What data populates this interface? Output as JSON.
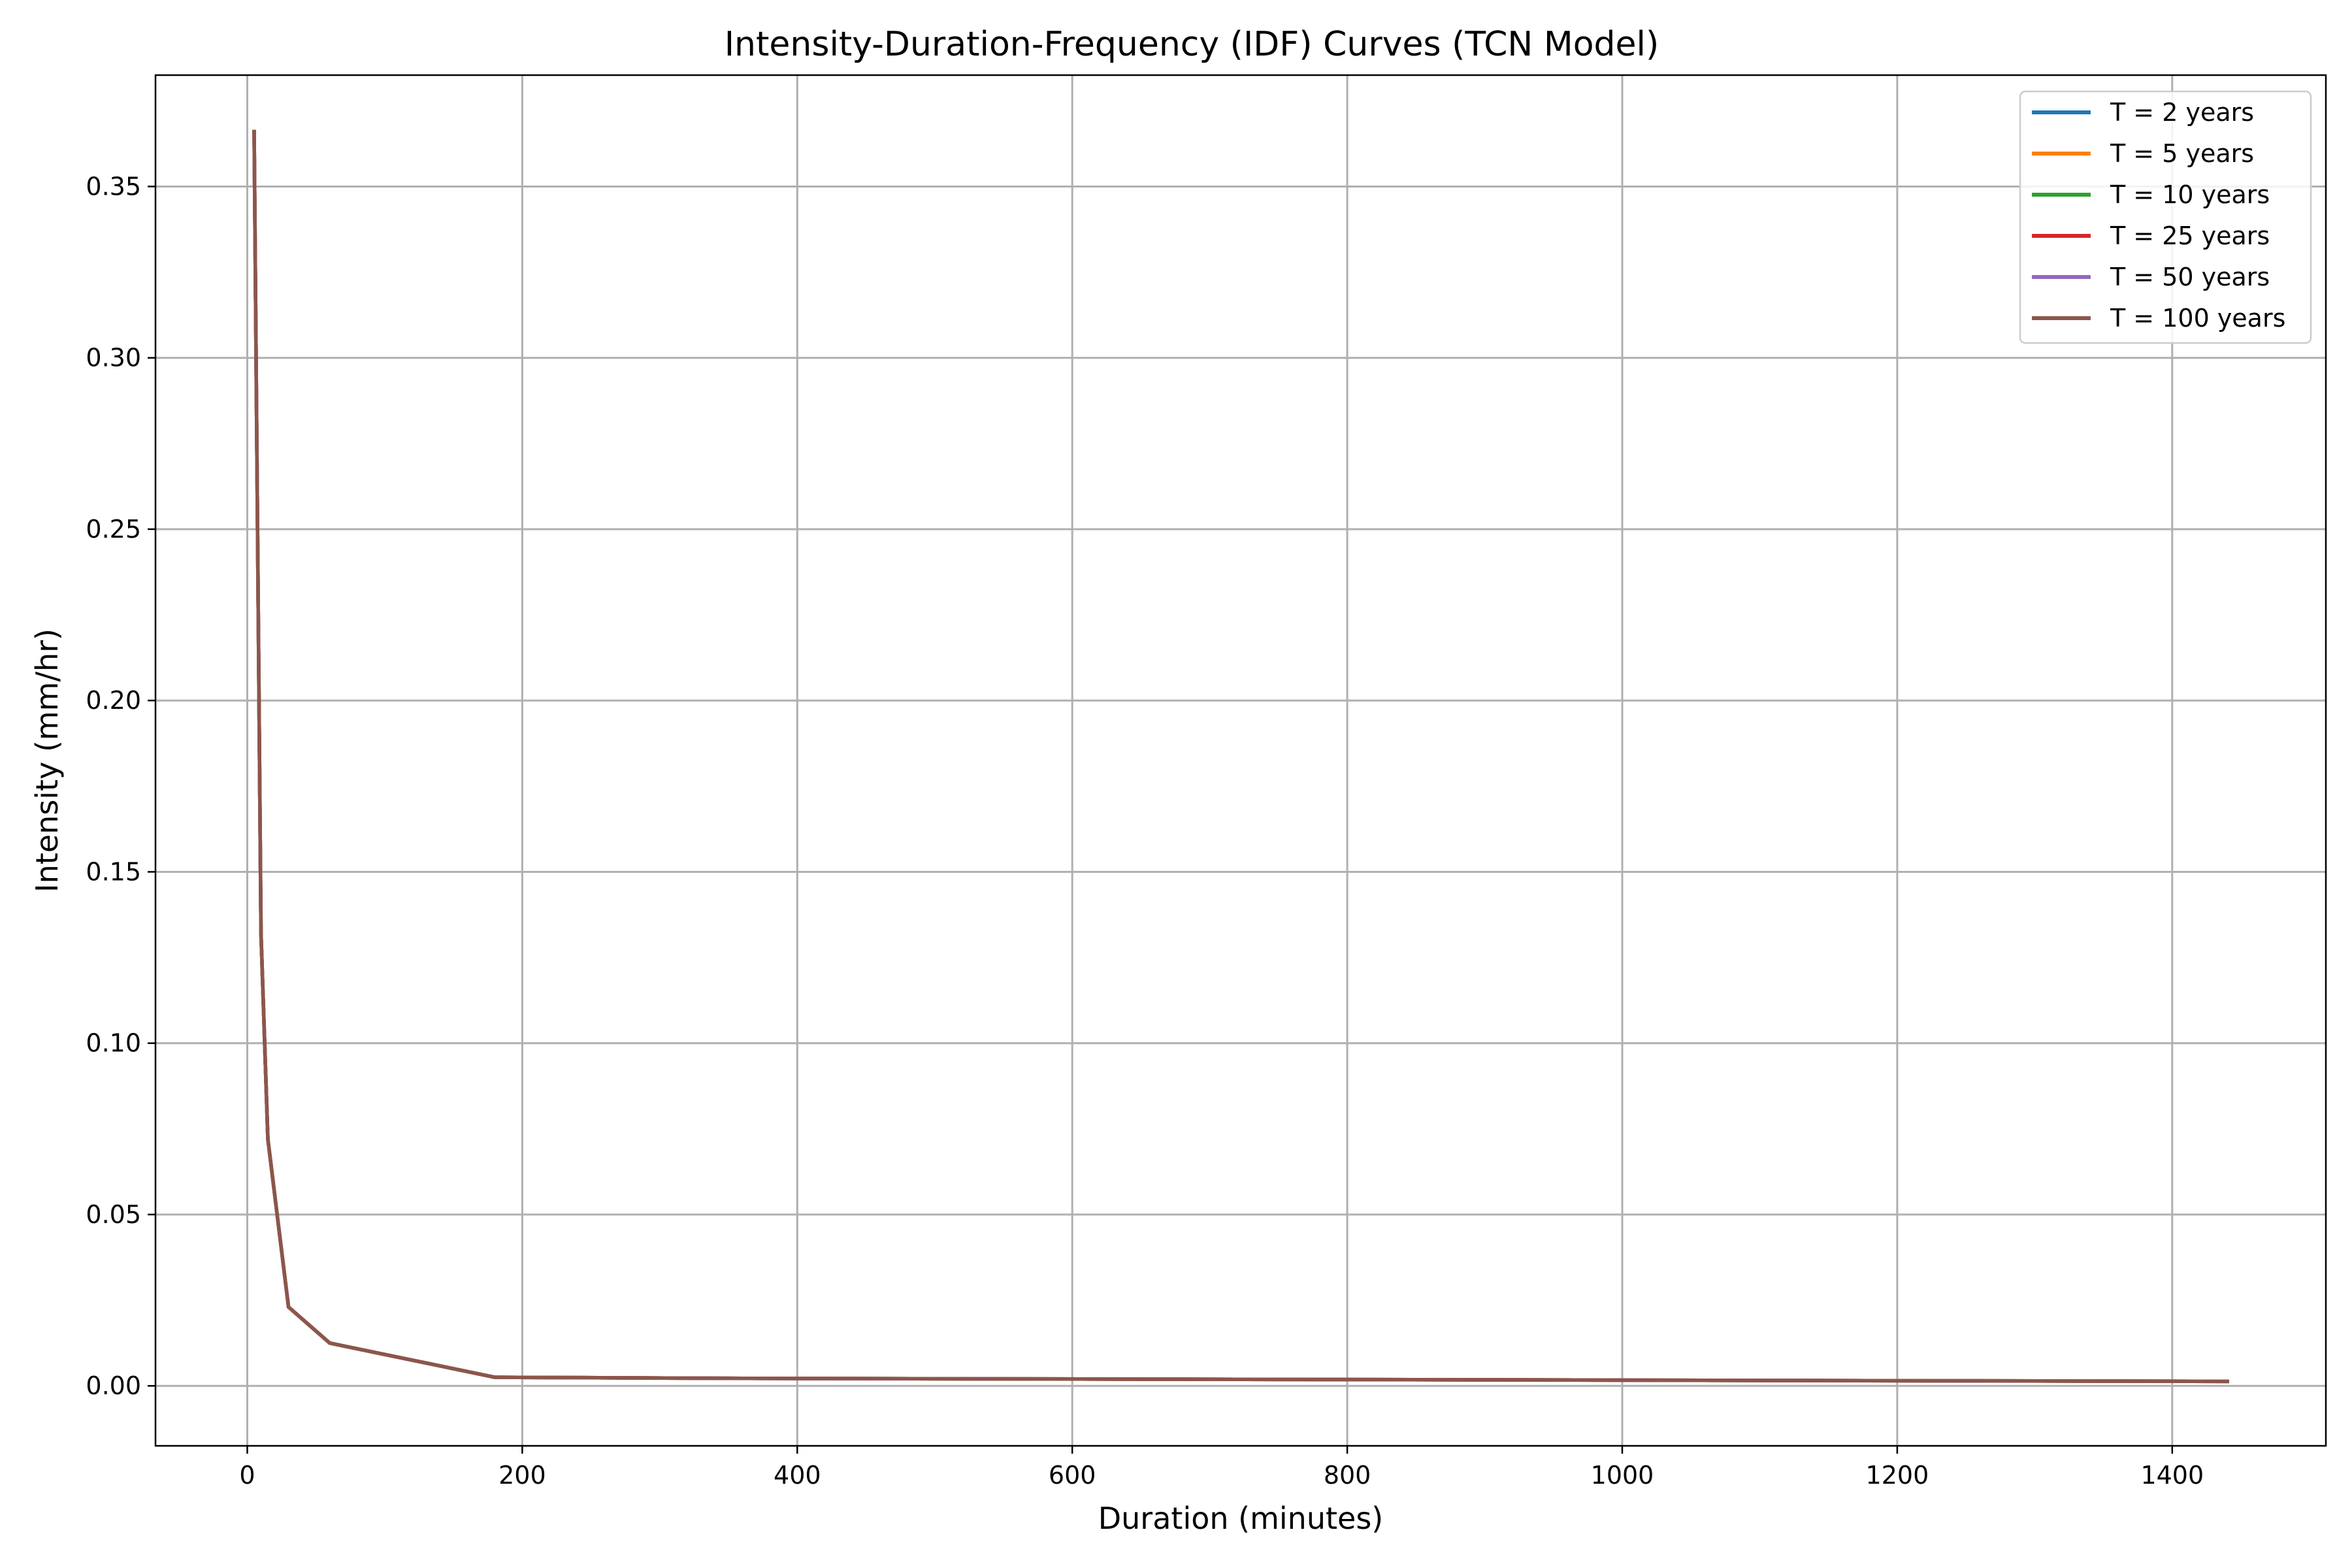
{
  "chart_data": {
    "type": "line",
    "title": "Intensity-Duration-Frequency (IDF) Curves (TCN Model)",
    "xlabel": "Duration (minutes)",
    "ylabel": "Intensity (mm/hr)",
    "xlim": [
      -66.75,
      1511.75
    ],
    "ylim": [
      -0.0175,
      0.3825
    ],
    "xticks": [
      0,
      200,
      400,
      600,
      800,
      1000,
      1200,
      1400
    ],
    "xtick_labels": [
      "0",
      "200",
      "400",
      "600",
      "800",
      "1000",
      "1200",
      "1400"
    ],
    "yticks": [
      0.0,
      0.05,
      0.1,
      0.15,
      0.2,
      0.25,
      0.3,
      0.35
    ],
    "ytick_labels": [
      "0.00",
      "0.05",
      "0.10",
      "0.15",
      "0.20",
      "0.25",
      "0.30",
      "0.35"
    ],
    "grid": true,
    "legend_position": "top-right",
    "x": [
      5,
      10,
      15,
      30,
      60,
      180,
      360,
      720,
      1440
    ],
    "series": [
      {
        "name": "T = 2 years",
        "color": "#1f77b4",
        "values": [
          0.366,
          0.132,
          0.072,
          0.023,
          0.0125,
          0.0025,
          0.0022,
          0.0019,
          0.0013
        ]
      },
      {
        "name": "T = 5 years",
        "color": "#ff7f0e",
        "values": [
          0.366,
          0.132,
          0.072,
          0.023,
          0.0125,
          0.0025,
          0.0022,
          0.0019,
          0.0013
        ]
      },
      {
        "name": "T = 10 years",
        "color": "#2ca02c",
        "values": [
          0.366,
          0.132,
          0.072,
          0.023,
          0.0125,
          0.0025,
          0.0022,
          0.0019,
          0.0013
        ]
      },
      {
        "name": "T = 25 years",
        "color": "#d62728",
        "values": [
          0.366,
          0.132,
          0.072,
          0.023,
          0.0125,
          0.0025,
          0.0022,
          0.0019,
          0.0013
        ]
      },
      {
        "name": "T = 50 years",
        "color": "#9467bd",
        "values": [
          0.366,
          0.132,
          0.072,
          0.023,
          0.0125,
          0.0025,
          0.0022,
          0.0019,
          0.0013
        ]
      },
      {
        "name": "T = 100 years",
        "color": "#8c564b",
        "values": [
          0.366,
          0.132,
          0.072,
          0.023,
          0.0125,
          0.0025,
          0.0022,
          0.0019,
          0.0013
        ]
      }
    ]
  }
}
